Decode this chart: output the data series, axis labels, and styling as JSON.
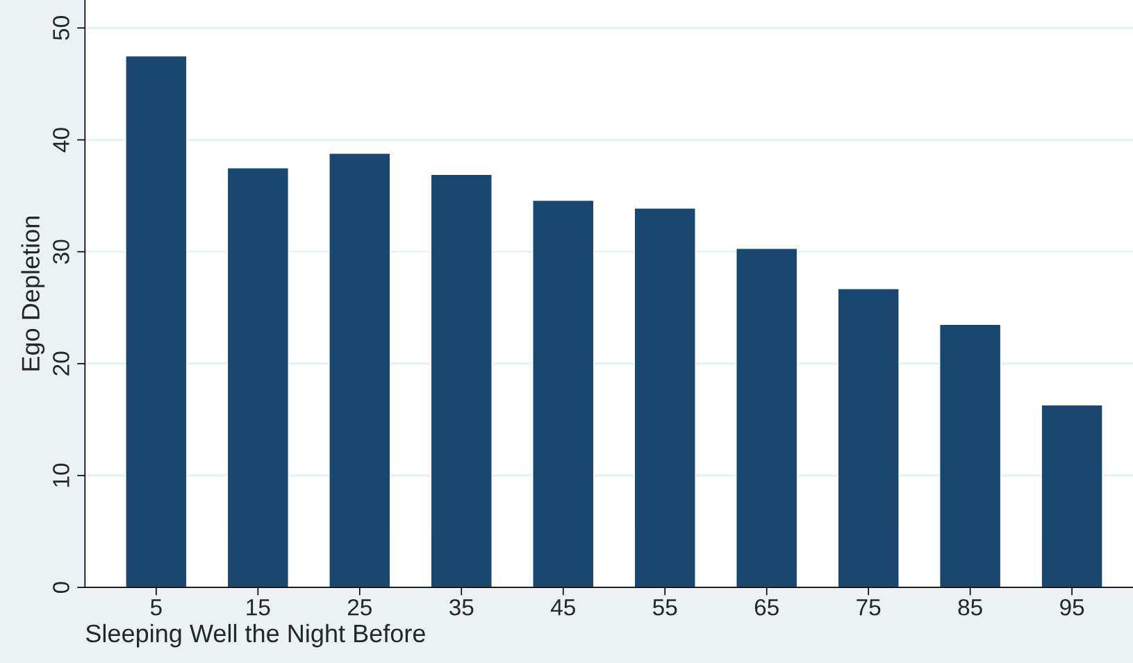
{
  "chart_data": {
    "type": "bar",
    "xlabel": "Sleeping Well the Night Before",
    "ylabel": "Ego Depletion",
    "categories": [
      "5",
      "15",
      "25",
      "35",
      "45",
      "55",
      "65",
      "75",
      "85",
      "95"
    ],
    "values": [
      47.5,
      37.5,
      38.8,
      36.9,
      34.6,
      33.9,
      30.3,
      26.7,
      23.5,
      16.3
    ],
    "color": "#1a476f",
    "ylim": [
      0,
      52.5
    ],
    "yticks": [
      0,
      10,
      20,
      30,
      40,
      50
    ],
    "grid": "y",
    "legend": false
  }
}
